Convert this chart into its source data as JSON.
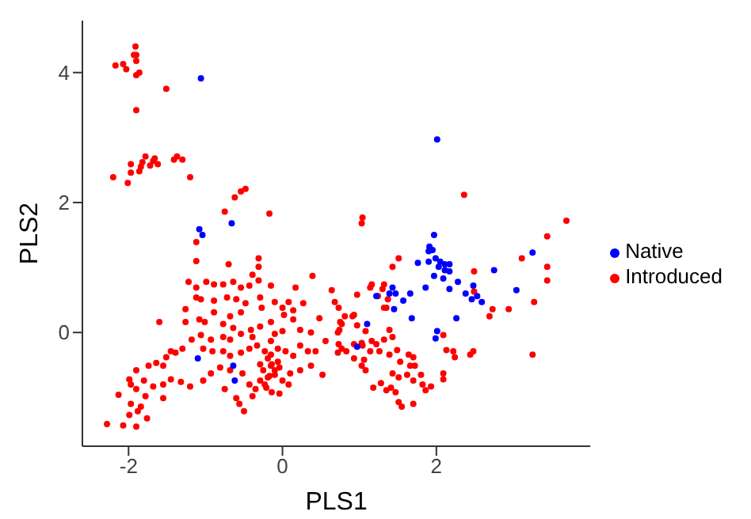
{
  "chart_data": {
    "type": "scatter",
    "xlabel": "PLS1",
    "ylabel": "PLS2",
    "xlim": [
      -2.6,
      4
    ],
    "ylim": [
      -1.75,
      4.8
    ],
    "xticks": [
      -2,
      0,
      2
    ],
    "yticks": [
      0,
      2,
      4
    ],
    "grid": false,
    "legend": "right",
    "marker": "circle",
    "series": [
      {
        "name": "Native",
        "color": "#0000ff",
        "x": [
          -1.06,
          2.01,
          -0.66,
          -1.08,
          -1.04,
          -1.1,
          -0.64,
          -0.62,
          1.97,
          1.91,
          1.95,
          1.9,
          1.76,
          1.9,
          1.99,
          2.05,
          2.11,
          2.17,
          2.03,
          2.11,
          2.17,
          1.97,
          2.09,
          2.28,
          2.17,
          1.86,
          2.38,
          2.48,
          2.46,
          2.53,
          2.59,
          2.75,
          3.04,
          3.25,
          2.26,
          2.01,
          1.99,
          1.68,
          1.66,
          1.57,
          1.45,
          1.43,
          1.47,
          1.39,
          1.22,
          1.1,
          0.97
        ],
        "values": [
          3.91,
          2.97,
          1.68,
          1.59,
          1.5,
          -0.4,
          -0.51,
          -0.74,
          1.5,
          1.32,
          1.27,
          1.25,
          1.07,
          1.09,
          1.14,
          1.09,
          1.05,
          1.05,
          1.01,
          0.96,
          0.94,
          0.87,
          0.83,
          0.78,
          0.67,
          0.69,
          0.6,
          0.72,
          0.51,
          0.56,
          0.47,
          0.96,
          0.65,
          1.23,
          0.22,
          0.02,
          -0.09,
          0.22,
          0.6,
          0.49,
          0.36,
          0.69,
          0.6,
          0.6,
          0.56,
          0.13,
          -0.22
        ]
      },
      {
        "name": "Introduced",
        "color": "#ff0000",
        "x": [
          -1.91,
          -1.93,
          -1.9,
          -1.9,
          -2.17,
          -2.07,
          -2.03,
          -1.9,
          -1.86,
          -1.51,
          -1.9,
          -1.97,
          -1.82,
          -1.78,
          -1.66,
          -1.68,
          -1.62,
          -1.72,
          -1.84,
          -1.86,
          -1.97,
          -2.2,
          -2.01,
          -1.41,
          -1.37,
          -1.3,
          -1.2,
          -0.48,
          -0.54,
          -0.62,
          -0.75,
          -0.17,
          2.36,
          1.04,
          1.03,
          3.69,
          3.44,
          3.44,
          3.44,
          3.11,
          3.27,
          2.94,
          2.73,
          2.69,
          2.49,
          2.49,
          3.25,
          1.51,
          1.43,
          1.32,
          1.16,
          1.14,
          1.3,
          1.24,
          1.37,
          1.35,
          1.32,
          0.97,
          0.93,
          0.91,
          0.81,
          0.77,
          0.74,
          0.72,
          0.77,
          0.83,
          0.72,
          0.97,
          1.08,
          0.93,
          1.03,
          1.04,
          1.16,
          1.22,
          1.32,
          1.39,
          1.43,
          1.14,
          1.26,
          1.06,
          1.03,
          1.08,
          0.93,
          1.39,
          1.49,
          1.53,
          1.64,
          1.7,
          1.66,
          1.72,
          1.43,
          1.51,
          1.62,
          1.8,
          1.7,
          2.09,
          2.13,
          2.22,
          2.24,
          2.48,
          2.44,
          2.09,
          2.09,
          1.82,
          1.93,
          1.86,
          1.18,
          1.28,
          1.35,
          1.47,
          1.51,
          1.55,
          1.7,
          1.41,
          -1.12,
          -1.12,
          -0.7,
          -0.31,
          -0.31,
          -0.39,
          0.39,
          -1.22,
          -1.12,
          -0.99,
          -0.89,
          -0.77,
          -0.64,
          -0.54,
          -0.43,
          -0.31,
          -0.15,
          0.17,
          0.64,
          0.68,
          0.73,
          0.75,
          -1.12,
          -1.06,
          -0.89,
          -0.72,
          -0.6,
          -0.48,
          -0.54,
          -0.29,
          -0.27,
          -0.1,
          0.0,
          0.08,
          0.27,
          -1.26,
          -1.6,
          -1.26,
          -1.08,
          -1.01,
          -0.89,
          -0.77,
          -0.68,
          -0.64,
          -0.41,
          -0.29,
          -0.15,
          0.02,
          0.14,
          0.14,
          0.48,
          0.37,
          0.23,
          0.0,
          -0.1,
          -0.15,
          -0.39,
          -0.54,
          -0.68,
          -0.77,
          -0.93,
          -1.06,
          -1.18,
          -1.3,
          -1.45,
          -1.51,
          -1.39,
          -1.64,
          -1.55,
          -1.74,
          -1.03,
          -0.91,
          -0.77,
          -0.68,
          -0.54,
          -0.43,
          -0.33,
          -0.23,
          -0.15,
          -0.06,
          0.04,
          0.14,
          0.23,
          0.33,
          0.43,
          0.56,
          0.73,
          0.37,
          0.52,
          0.23,
          0.1,
          -0.04,
          -0.15,
          -0.25,
          -0.29,
          -0.21,
          -0.14,
          -0.04,
          -0.19,
          -0.1,
          0.0,
          0.08,
          -0.35,
          -0.43,
          -0.52,
          -0.68,
          -0.81,
          -0.93,
          -1.03,
          -1.2,
          -1.32,
          -1.45,
          -1.55,
          -1.68,
          -1.8,
          -1.9,
          -1.99,
          -1.97,
          -2.13,
          -1.9,
          -1.78,
          -1.84,
          -1.97,
          -1.88,
          -1.99,
          -2.07,
          -2.28,
          -1.9,
          -1.76,
          -1.55,
          -0.75,
          -0.6,
          -0.56,
          -0.5,
          -0.39,
          -0.19,
          -0.14,
          -0.1,
          -0.17,
          -0.06,
          -0.29,
          -0.23
        ],
        "values": [
          4.4,
          4.27,
          4.27,
          4.18,
          4.11,
          4.13,
          4.05,
          3.96,
          4.0,
          3.75,
          3.42,
          2.59,
          2.62,
          2.71,
          2.68,
          2.64,
          2.59,
          2.57,
          2.55,
          2.48,
          2.46,
          2.39,
          2.3,
          2.66,
          2.71,
          2.66,
          2.39,
          2.21,
          2.17,
          2.08,
          1.86,
          1.83,
          2.12,
          1.77,
          1.68,
          1.72,
          1.48,
          1.01,
          0.8,
          1.14,
          0.47,
          0.36,
          0.36,
          0.25,
          0.94,
          0.63,
          -0.34,
          1.14,
          1.01,
          0.74,
          0.74,
          0.69,
          0.67,
          0.56,
          0.51,
          0.38,
          0.38,
          0.58,
          0.27,
          0.25,
          0.25,
          0.13,
          0.04,
          0.0,
          -0.25,
          -0.29,
          -0.31,
          0.11,
          0.02,
          -0.18,
          -0.16,
          -0.2,
          -0.13,
          -0.18,
          -0.11,
          0.04,
          -0.07,
          -0.29,
          -0.29,
          -0.42,
          -0.51,
          -0.58,
          -0.4,
          -0.34,
          -0.27,
          -0.45,
          -0.34,
          -0.38,
          -0.51,
          -0.51,
          -0.63,
          -0.69,
          -0.65,
          -0.65,
          -0.74,
          -0.04,
          -0.27,
          -0.29,
          -0.38,
          -0.29,
          -0.34,
          -0.63,
          -0.72,
          -0.8,
          -0.83,
          -0.89,
          -0.85,
          -0.78,
          -0.89,
          -0.92,
          -1.07,
          -1.14,
          -1.1,
          -0.85,
          1.39,
          1.1,
          1.05,
          1.14,
          1.01,
          0.89,
          0.87,
          0.78,
          0.69,
          0.78,
          0.74,
          0.74,
          0.78,
          0.69,
          0.72,
          0.8,
          0.72,
          0.69,
          0.65,
          0.47,
          0.38,
          0.16,
          0.54,
          0.51,
          0.49,
          0.54,
          0.51,
          0.45,
          0.31,
          0.54,
          0.38,
          0.47,
          0.38,
          0.47,
          0.45,
          0.36,
          0.16,
          0.16,
          0.2,
          0.16,
          0.31,
          0.13,
          0.25,
          0.07,
          0.04,
          0.09,
          0.16,
          0.27,
          0.34,
          0.2,
          0.22,
          0.0,
          0.04,
          0.02,
          -0.02,
          -0.13,
          -0.07,
          -0.02,
          -0.11,
          -0.07,
          -0.11,
          -0.04,
          -0.11,
          -0.25,
          -0.29,
          -0.38,
          -0.31,
          -0.47,
          -0.51,
          -0.51,
          -0.25,
          -0.29,
          -0.29,
          -0.36,
          -0.31,
          -0.25,
          -0.2,
          -0.29,
          -0.34,
          -0.25,
          -0.29,
          -0.36,
          -0.2,
          -0.29,
          -0.29,
          -0.13,
          -0.18,
          -0.51,
          -0.65,
          -0.58,
          -0.63,
          -0.54,
          -0.51,
          -0.58,
          -0.74,
          -0.85,
          -0.92,
          -0.94,
          -0.69,
          -0.65,
          -0.74,
          -0.8,
          -0.87,
          -0.8,
          -0.63,
          -0.58,
          -0.54,
          -0.63,
          -0.74,
          -0.83,
          -0.76,
          -0.72,
          -0.8,
          -0.83,
          -0.74,
          -0.58,
          -0.72,
          -0.8,
          -0.96,
          -0.87,
          -0.98,
          -1.14,
          -1.1,
          -1.21,
          -1.27,
          -1.43,
          -1.41,
          -1.45,
          -1.32,
          -1.01,
          -0.87,
          -1.01,
          -1.1,
          -1.21,
          -0.98,
          -0.4,
          -0.49,
          -0.58,
          -0.67,
          -0.45,
          -0.49,
          -0.8
        ]
      }
    ]
  }
}
